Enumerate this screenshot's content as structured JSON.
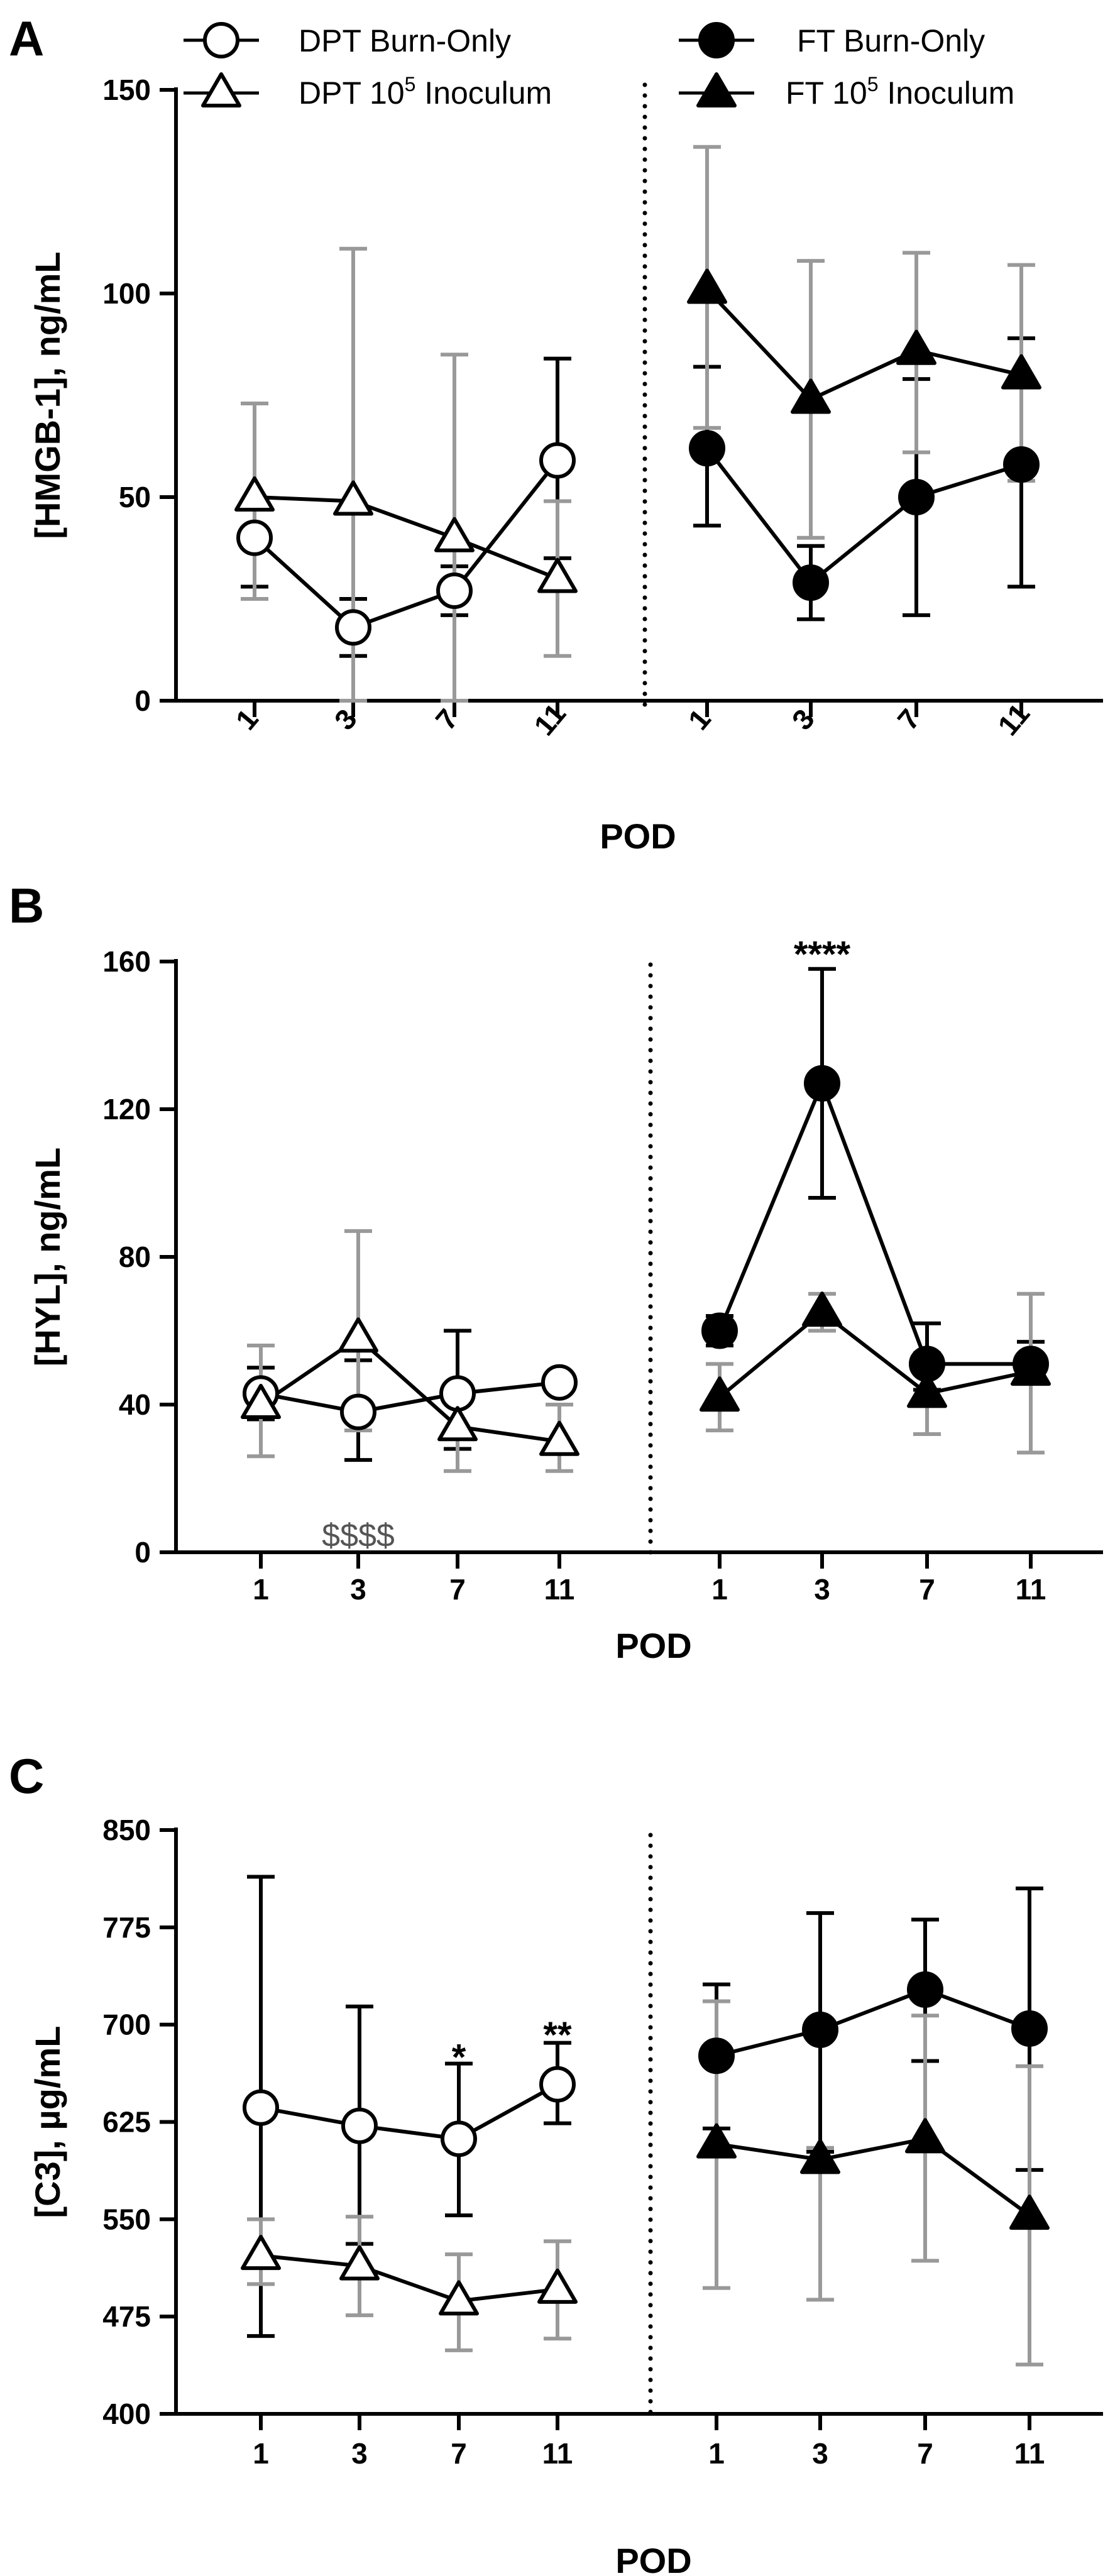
{
  "legend": {
    "dpt_burn": "DPT Burn-Only",
    "dpt_inoc_pre": "DPT 10",
    "dpt_inoc_sup": "5",
    "dpt_inoc_post": " Inoculum",
    "ft_burn": "FT Burn-Only",
    "ft_inoc_pre": "FT 10",
    "ft_inoc_sup": "5",
    "ft_inoc_post": " Inoculum"
  },
  "colors": {
    "black": "#000000",
    "gray": "#999999",
    "white": "#ffffff"
  },
  "chart_data": [
    {
      "type": "line",
      "panel": "A",
      "ylabel": "[HMGB-1], ng/mL",
      "xlabel": "POD",
      "ylim": [
        0,
        150
      ],
      "yticks": [
        "0",
        "50",
        "100",
        "150"
      ],
      "categories": [
        "1",
        "3",
        "7",
        "11"
      ],
      "tick_rotation": "rotated",
      "series": [
        {
          "name": "DPT Burn-Only",
          "group": "DPT",
          "marker": "circle-open",
          "values": [
            40,
            18,
            27,
            59
          ],
          "err_lo": [
            12,
            7,
            6,
            24
          ],
          "err_hi": [
            9,
            7,
            6,
            25
          ],
          "err_color": "black"
        },
        {
          "name": "DPT 10^5 Inoculum",
          "group": "DPT",
          "marker": "triangle-open",
          "values": [
            50,
            49,
            40,
            30
          ],
          "err_lo": [
            25,
            49,
            40,
            19
          ],
          "err_hi": [
            23,
            62,
            45,
            19
          ],
          "err_color": "gray"
        },
        {
          "name": "FT Burn-Only",
          "group": "FT",
          "marker": "circle-filled",
          "values": [
            62,
            29,
            50,
            58
          ],
          "err_lo": [
            19,
            9,
            29,
            30
          ],
          "err_hi": [
            20,
            9,
            29,
            31
          ],
          "err_color": "black"
        },
        {
          "name": "FT 10^5 Inoculum",
          "group": "FT",
          "marker": "triangle-filled",
          "values": [
            101,
            74,
            86,
            80
          ],
          "err_lo": [
            34,
            34,
            25,
            26
          ],
          "err_hi": [
            35,
            34,
            24,
            27
          ],
          "err_color": "gray"
        }
      ],
      "annotations": []
    },
    {
      "type": "line",
      "panel": "B",
      "ylabel": "[HYL], ng/mL",
      "xlabel": "POD",
      "ylim": [
        0,
        160
      ],
      "yticks": [
        "0",
        "40",
        "80",
        "120",
        "160"
      ],
      "categories": [
        "1",
        "3",
        "7",
        "11"
      ],
      "tick_rotation": "none",
      "series": [
        {
          "name": "DPT Burn-Only",
          "group": "DPT",
          "marker": "circle-open",
          "values": [
            43,
            38,
            43,
            46
          ],
          "err_lo": [
            7,
            13,
            15,
            0
          ],
          "err_hi": [
            7,
            14,
            17,
            0
          ],
          "err_color": "black"
        },
        {
          "name": "DPT 10^5 Inoculum",
          "group": "DPT",
          "marker": "triangle-open",
          "values": [
            40,
            58,
            34,
            30
          ],
          "err_lo": [
            14,
            25,
            12,
            8
          ],
          "err_hi": [
            16,
            29,
            8,
            10
          ],
          "err_color": "gray"
        },
        {
          "name": "FT Burn-Only",
          "group": "FT",
          "marker": "circle-filled",
          "values": [
            60,
            127,
            51,
            51
          ],
          "err_lo": [
            4,
            31,
            7,
            4
          ],
          "err_hi": [
            4,
            31,
            11,
            6
          ],
          "err_color": "black"
        },
        {
          "name": "FT 10^5 Inoculum",
          "group": "FT",
          "marker": "triangle-filled",
          "values": [
            42,
            65,
            43,
            49
          ],
          "err_lo": [
            9,
            5,
            11,
            22
          ],
          "err_hi": [
            9,
            5,
            11,
            21
          ],
          "err_color": "gray"
        }
      ],
      "annotations": [
        {
          "text": "$$$$",
          "group": "DPT",
          "x": "3",
          "y": 5,
          "style": "dollar"
        },
        {
          "text": "****",
          "group": "FT",
          "x": "3",
          "y": 162,
          "style": "star"
        }
      ]
    },
    {
      "type": "line",
      "panel": "C",
      "ylabel": "[C3], µg/mL",
      "xlabel": "POD",
      "ylim": [
        400,
        850
      ],
      "yticks": [
        "400",
        "475",
        "550",
        "625",
        "700",
        "775",
        "850"
      ],
      "categories": [
        "1",
        "3",
        "7",
        "11"
      ],
      "tick_rotation": "none",
      "series": [
        {
          "name": "DPT Burn-Only",
          "group": "DPT",
          "marker": "circle-open",
          "values": [
            636,
            622,
            612,
            654
          ],
          "err_lo": [
            176,
            91,
            59,
            30
          ],
          "err_hi": [
            178,
            92,
            58,
            32
          ],
          "err_color": "black"
        },
        {
          "name": "DPT 10^5 Inoculum",
          "group": "DPT",
          "marker": "triangle-open",
          "values": [
            522,
            514,
            487,
            496
          ],
          "err_lo": [
            22,
            38,
            38,
            38
          ],
          "err_hi": [
            28,
            38,
            36,
            37
          ],
          "err_color": "gray"
        },
        {
          "name": "FT Burn-Only",
          "group": "FT",
          "marker": "circle-filled",
          "values": [
            676,
            696,
            727,
            697
          ],
          "err_lo": [
            56,
            94,
            55,
            109
          ],
          "err_hi": [
            55,
            90,
            54,
            108
          ],
          "err_color": "black"
        },
        {
          "name": "FT 10^5 Inoculum",
          "group": "FT",
          "marker": "triangle-filled",
          "values": [
            608,
            596,
            612,
            553
          ],
          "err_lo": [
            111,
            108,
            94,
            115
          ],
          "err_hi": [
            110,
            9,
            95,
            115
          ],
          "err_color": "gray"
        }
      ],
      "annotations": [
        {
          "text": "*",
          "group": "DPT",
          "x": "7",
          "y": 675,
          "style": "star"
        },
        {
          "text": "**",
          "group": "DPT",
          "x": "11",
          "y": 692,
          "style": "star"
        }
      ]
    }
  ]
}
